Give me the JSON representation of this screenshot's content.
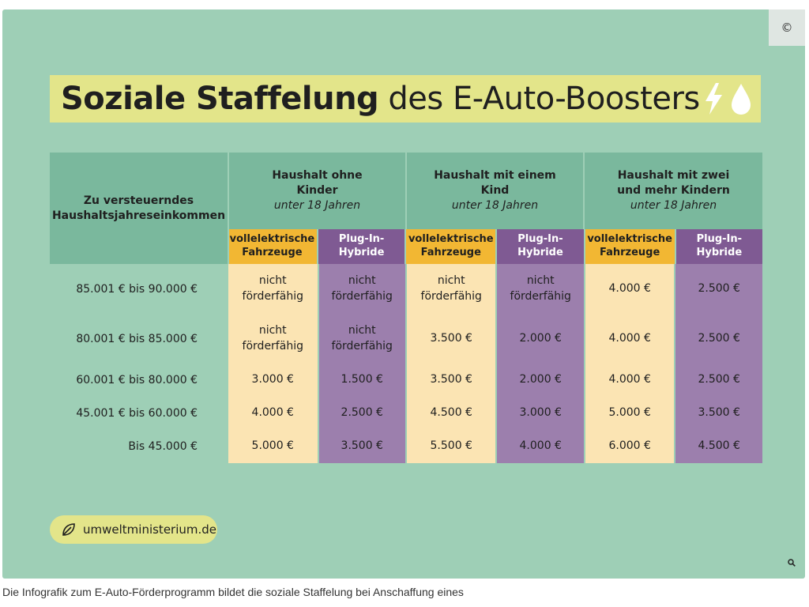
{
  "copyright": "©",
  "title": {
    "bold": "Soziale Staffelung",
    "rest": " des E-Auto-Boosters"
  },
  "icons": [
    "lightning-icon",
    "drop-icon",
    "leaf-icon",
    "zoom-icon"
  ],
  "colors": {
    "background": "#9ecfb6",
    "header": "#7ab89d",
    "electric": "#f2b733",
    "electric_cell": "#fbe4b3",
    "hybrid": "#7f5a93",
    "hybrid_cell": "#9c7fad",
    "highlight": "#e3e58a"
  },
  "table": {
    "income_header": "Zu versteuerndes Haushaltsjahreseinkommen",
    "groups": [
      {
        "line1": "Haushalt ohne Kinder",
        "line2": "unter 18 Jahren"
      },
      {
        "line1": "Haushalt mit einem Kind",
        "line2": "unter 18 Jahren"
      },
      {
        "line1": "Haushalt mit zwei und mehr Kindern",
        "line2": "unter 18 Jahren"
      }
    ],
    "sub_electric": "vollelektrische Fahrzeuge",
    "sub_hybrid": "Plug-In-Hybride",
    "rows": [
      {
        "income": "85.001 € bis 90.000 €",
        "values": [
          "nicht förderfähig",
          "nicht förderfähig",
          "nicht förderfähig",
          "nicht förderfähig",
          "4.000 €",
          "2.500 €"
        ]
      },
      {
        "income": "80.001 € bis 85.000 €",
        "values": [
          "nicht förderfähig",
          "nicht förderfähig",
          "3.500 €",
          "2.000 €",
          "4.000 €",
          "2.500 €"
        ]
      },
      {
        "income": "60.001 € bis 80.000 €",
        "values": [
          "3.000 €",
          "1.500 €",
          "3.500 €",
          "2.000 €",
          "4.000 €",
          "2.500 €"
        ]
      },
      {
        "income": "45.001 € bis 60.000 €",
        "values": [
          "4.000 €",
          "2.500 €",
          "4.500 €",
          "3.000 €",
          "5.000 €",
          "3.500 €"
        ]
      },
      {
        "income": "Bis  45.000 €",
        "values": [
          "5.000 €",
          "3.500 €",
          "5.500 €",
          "4.000 €",
          "6.000 €",
          "4.500 €"
        ]
      }
    ]
  },
  "footer_link": "umweltministerium.de",
  "caption": "Die Infografik zum E-Auto-Förderprogramm bildet die soziale Staffelung bei Anschaffung eines"
}
